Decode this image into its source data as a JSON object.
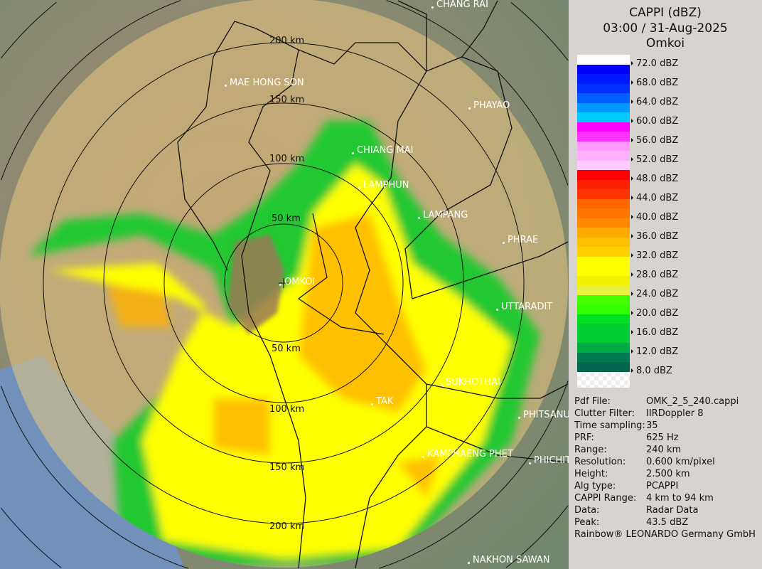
{
  "header": {
    "product": "CAPPI (dBZ)",
    "datetime": "03:00 / 31-Aug-2025",
    "site": "Omkoi"
  },
  "map": {
    "radar_label": "OMKOI",
    "range_rings": [
      "50 km",
      "50 km",
      "100 km",
      "100 km",
      "150 km",
      "150 km",
      "200 km",
      "200 km"
    ],
    "cities": [
      "CHANG RAI",
      "MAE HONG SON",
      "PHAYAO",
      "CHIANG MAI",
      "LAMPHUN",
      "LAMPANG",
      "PHRAE",
      "UTTARADIT",
      "SUKHOTHAI",
      "TAK",
      "PHITSANU",
      "KAMPHAENG PHET",
      "PHICHIT",
      "NAKHON SAWAN"
    ]
  },
  "legend": {
    "labels": [
      "72.0 dBZ",
      "68.0 dBZ",
      "64.0 dBZ",
      "60.0 dBZ",
      "56.0 dBZ",
      "52.0 dBZ",
      "48.0 dBZ",
      "44.0 dBZ",
      "40.0 dBZ",
      "36.0 dBZ",
      "32.0 dBZ",
      "28.0 dBZ",
      "24.0 dBZ",
      "20.0 dBZ",
      "16.0 dBZ",
      "12.0 dBZ",
      "8.0 dBZ"
    ],
    "colors": [
      "#ffffff",
      "#0000ff",
      "#0018ff",
      "#0030ff",
      "#0060ff",
      "#0099ff",
      "#00ccff",
      "#ff00ff",
      "#ff33ff",
      "#ff99ff",
      "#ffb0ff",
      "#ffccff",
      "#ff0000",
      "#ff2000",
      "#ff3300",
      "#ff6600",
      "#ff7700",
      "#ff8800",
      "#ffaa00",
      "#ffc000",
      "#ffd000",
      "#ffff00",
      "#ffff00",
      "#f5f000",
      "#e8f040",
      "#44ff00",
      "#33ff00",
      "#00e020",
      "#00cc33",
      "#00cc33",
      "#00aa44",
      "#007a50",
      "#006650"
    ]
  },
  "info": [
    {
      "key": "Pdf File:",
      "value": "OMK_2_5_240.cappi"
    },
    {
      "key": "Clutter Filter:",
      "value": "IIRDoppler 8"
    },
    {
      "key": "Time sampling:",
      "value": "35"
    },
    {
      "key": "PRF:",
      "value": "625 Hz"
    },
    {
      "key": "Range:",
      "value": "240 km"
    },
    {
      "key": "Resolution:",
      "value": "0.600 km/pixel"
    },
    {
      "key": "Height:",
      "value": "2.500 km"
    },
    {
      "key": "Alg type:",
      "value": "PCAPPI"
    },
    {
      "key": "CAPPI Range:",
      "value": "4 km to 94 km"
    },
    {
      "key": "Data:",
      "value": "Radar Data"
    },
    {
      "key": "Peak:",
      "value": "43.5 dBZ"
    }
  ],
  "footer": "Rainbow® LEONARDO Germany GmbH"
}
